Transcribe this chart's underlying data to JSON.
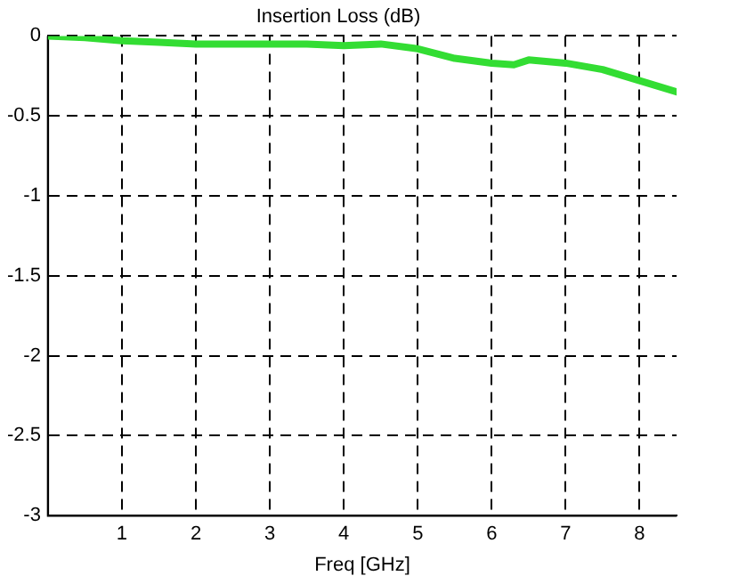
{
  "chart_data": {
    "type": "line",
    "title": "Insertion Loss (dB)",
    "xlabel": "Freq [GHz]",
    "x": [
      0,
      0.5,
      1,
      1.5,
      2,
      2.5,
      3,
      3.5,
      4,
      4.5,
      5,
      5.5,
      6,
      6.3,
      6.5,
      7,
      7.5,
      8,
      8.5
    ],
    "series": [
      {
        "color": "#33dd33",
        "values": [
          0,
          -0.01,
          -0.03,
          -0.04,
          -0.05,
          -0.05,
          -0.05,
          -0.05,
          -0.06,
          -0.05,
          -0.08,
          -0.14,
          -0.17,
          -0.18,
          -0.15,
          -0.17,
          -0.21,
          -0.28,
          -0.35
        ]
      }
    ],
    "xlim": [
      0,
      8.5
    ],
    "xticks": [
      1,
      2,
      3,
      4,
      5,
      6,
      7,
      8
    ],
    "ylim": [
      -3,
      0
    ],
    "yticks": [
      -3,
      -2.5,
      -2,
      -1.5,
      -1,
      -0.5,
      0
    ],
    "grid": true,
    "line_style": "solid",
    "marker": "none",
    "legend": false
  }
}
